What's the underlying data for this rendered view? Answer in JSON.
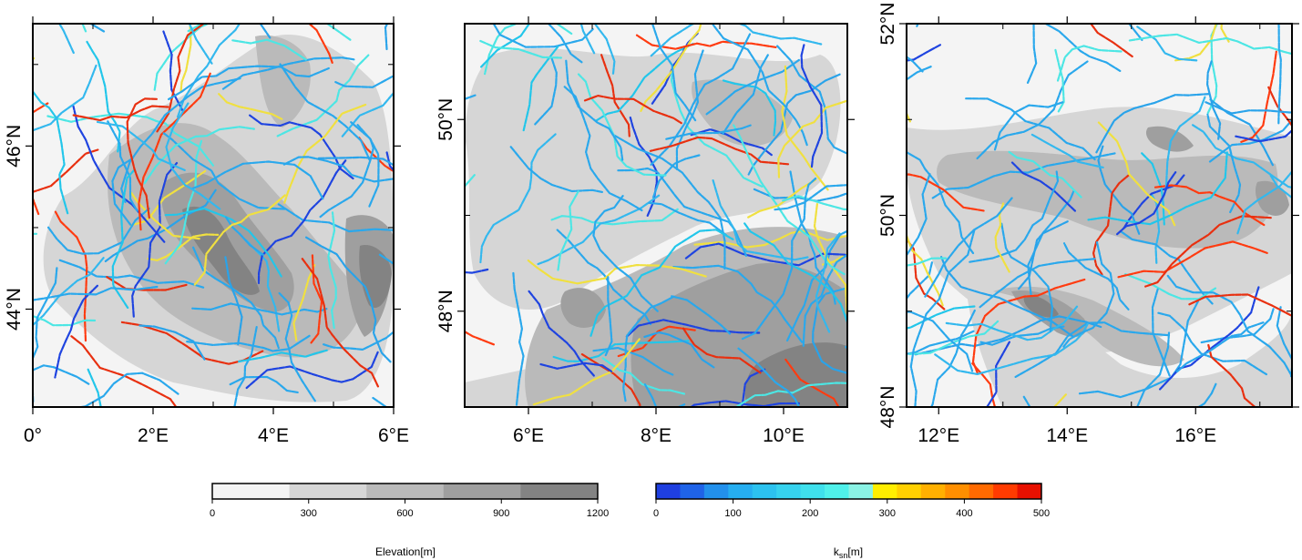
{
  "maps": [
    {
      "name": "left",
      "lon_range": [
        0,
        6
      ],
      "lat_range": [
        42.8,
        47.5
      ],
      "x_ticks": [
        {
          "v": 0,
          "label": "0°"
        },
        {
          "v": 2,
          "label": "2°E"
        },
        {
          "v": 4,
          "label": "4°E"
        },
        {
          "v": 6,
          "label": "6°E"
        }
      ],
      "y_ticks": [
        {
          "v": 44,
          "label": "44°N"
        },
        {
          "v": 46,
          "label": "46°N"
        }
      ],
      "minor_lon": [
        1,
        3,
        5
      ],
      "minor_lat": [
        45,
        47
      ],
      "seed": 11
    },
    {
      "name": "middle",
      "lon_range": [
        5,
        11
      ],
      "lat_range": [
        47,
        51
      ],
      "x_ticks": [
        {
          "v": 6,
          "label": "6°E"
        },
        {
          "v": 8,
          "label": "8°E"
        },
        {
          "v": 10,
          "label": "10°E"
        }
      ],
      "y_ticks": [
        {
          "v": 48,
          "label": "48°N"
        },
        {
          "v": 50,
          "label": "50°N"
        }
      ],
      "minor_lon": [
        5,
        7,
        9,
        11
      ],
      "minor_lat": [
        47,
        49,
        51
      ],
      "seed": 27
    },
    {
      "name": "right",
      "lon_range": [
        11.5,
        17.5
      ],
      "lat_range": [
        48,
        52
      ],
      "x_ticks": [
        {
          "v": 12,
          "label": "12°E"
        },
        {
          "v": 14,
          "label": "14°E"
        },
        {
          "v": 16,
          "label": "16°E"
        }
      ],
      "y_ticks": [
        {
          "v": 48,
          "label": "48°N"
        },
        {
          "v": 50,
          "label": "50°N"
        },
        {
          "v": 52,
          "label": "52°N"
        }
      ],
      "minor_lon": [
        13,
        15,
        17
      ],
      "minor_lat": [
        49,
        51
      ],
      "seed": 43
    }
  ],
  "colorbars": [
    {
      "name": "elevation",
      "title": "Elevation[m]",
      "ticks": [
        "0",
        "300",
        "600",
        "900",
        "1200"
      ],
      "colors": [
        "#f4f4f4",
        "#d6d6d6",
        "#bababa",
        "#9f9f9f",
        "#838383"
      ]
    },
    {
      "name": "ksn",
      "title_main": "k",
      "title_sub": "sn",
      "title_unit": "[m]",
      "ticks": [
        "0",
        "100",
        "200",
        "300",
        "400",
        "500"
      ],
      "colors": [
        "#1f3fe0",
        "#1f63e8",
        "#2290ec",
        "#26aef0",
        "#2cc2ef",
        "#36d2ee",
        "#3fe0ec",
        "#4ff0ea",
        "#8af2e4",
        "#ffee00",
        "#ffd000",
        "#ffb000",
        "#ff8f00",
        "#ff6a00",
        "#ff3b00",
        "#e81000"
      ]
    }
  ],
  "colors": {
    "elev": [
      "#f4f4f4",
      "#d6d6d6",
      "#bababa",
      "#9f9f9f",
      "#838383"
    ],
    "ksn_low": "#2aa8ec",
    "ksn_mid": "#4ce6e4",
    "ksn_high": "#ff3b10",
    "ksn_very_low": "#1f44e0"
  }
}
